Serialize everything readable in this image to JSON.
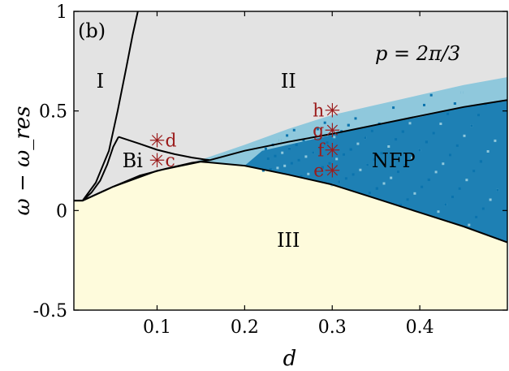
{
  "colors": {
    "region_I_II": "#e3e3e3",
    "region_III": "#fefbdc",
    "nfp_light": "#8fc8dc",
    "nfp_dark": "#0a73ad",
    "boundary": "#000000",
    "marker": "#9b1c1c"
  },
  "chart_data": {
    "type": "area",
    "panel_label": "(b)",
    "annotation": "p = 2π/3",
    "xlabel": "d",
    "ylabel": "ω − ω_res",
    "xlim": [
      0.005,
      0.5
    ],
    "ylim": [
      -0.5,
      1.0
    ],
    "x_ticks": [
      {
        "value": 0.1,
        "label": "0.1"
      },
      {
        "value": 0.2,
        "label": "0.2"
      },
      {
        "value": 0.3,
        "label": "0.3"
      },
      {
        "value": 0.4,
        "label": "0.4"
      }
    ],
    "y_ticks": [
      {
        "value": -0.5,
        "label": "-0.5"
      },
      {
        "value": 0,
        "label": "0"
      },
      {
        "value": 0.5,
        "label": "0.5"
      },
      {
        "value": 1.0,
        "label": "1"
      }
    ],
    "regions": [
      {
        "label": "I",
        "x": 0.035,
        "y": 0.65
      },
      {
        "label": "II",
        "x": 0.25,
        "y": 0.65
      },
      {
        "label": "Bi",
        "x": 0.072,
        "y": 0.25
      },
      {
        "label": "NFP",
        "x": 0.37,
        "y": 0.25
      },
      {
        "label": "III",
        "x": 0.25,
        "y": -0.15
      }
    ],
    "boundaries": {
      "upper_I_II": [
        [
          0.005,
          0.05
        ],
        [
          0.015,
          0.05
        ],
        [
          0.03,
          0.14
        ],
        [
          0.045,
          0.3
        ],
        [
          0.055,
          0.5
        ],
        [
          0.065,
          0.72
        ],
        [
          0.072,
          0.88
        ],
        [
          0.078,
          1.0
        ]
      ],
      "inner_I_Bi": [
        [
          0.015,
          0.05
        ],
        [
          0.025,
          0.09
        ],
        [
          0.035,
          0.15
        ],
        [
          0.043,
          0.23
        ],
        [
          0.05,
          0.32
        ],
        [
          0.056,
          0.37
        ]
      ],
      "upper_Bi": [
        [
          0.056,
          0.37
        ],
        [
          0.08,
          0.335
        ],
        [
          0.1,
          0.305
        ],
        [
          0.12,
          0.283
        ],
        [
          0.14,
          0.266
        ],
        [
          0.16,
          0.253
        ]
      ],
      "lower_Bi": [
        [
          0.015,
          0.05
        ],
        [
          0.05,
          0.12
        ],
        [
          0.08,
          0.175
        ],
        [
          0.11,
          0.21
        ],
        [
          0.14,
          0.24
        ],
        [
          0.16,
          0.253
        ]
      ],
      "separatrix_II_NFP": [
        [
          0.16,
          0.253
        ],
        [
          0.2,
          0.3
        ],
        [
          0.25,
          0.345
        ],
        [
          0.3,
          0.385
        ],
        [
          0.35,
          0.43
        ],
        [
          0.4,
          0.475
        ],
        [
          0.45,
          0.52
        ],
        [
          0.5,
          0.555
        ]
      ],
      "lower_III": [
        [
          0.005,
          0.05
        ],
        [
          0.015,
          0.05
        ],
        [
          0.05,
          0.12
        ],
        [
          0.1,
          0.2
        ],
        [
          0.15,
          0.245
        ],
        [
          0.2,
          0.225
        ],
        [
          0.25,
          0.18
        ],
        [
          0.3,
          0.13
        ],
        [
          0.35,
          0.06
        ],
        [
          0.4,
          -0.01
        ],
        [
          0.45,
          -0.08
        ],
        [
          0.5,
          -0.16
        ]
      ]
    },
    "nfp_region": {
      "upper_edge": [
        [
          0.14,
          0.24
        ],
        [
          0.2,
          0.33
        ],
        [
          0.25,
          0.41
        ],
        [
          0.3,
          0.48
        ],
        [
          0.35,
          0.53
        ],
        [
          0.4,
          0.58
        ],
        [
          0.45,
          0.63
        ],
        [
          0.5,
          0.67
        ]
      ],
      "dark_upper_edge": [
        [
          0.22,
          0.3
        ],
        [
          0.3,
          0.38
        ],
        [
          0.35,
          0.43
        ],
        [
          0.4,
          0.47
        ],
        [
          0.45,
          0.52
        ],
        [
          0.5,
          0.55
        ]
      ]
    },
    "markers": [
      {
        "label": "d",
        "x": 0.1,
        "y": 0.35
      },
      {
        "label": "c",
        "x": 0.1,
        "y": 0.25
      },
      {
        "label": "h",
        "x": 0.3,
        "y": 0.5
      },
      {
        "label": "g",
        "x": 0.3,
        "y": 0.4
      },
      {
        "label": "f",
        "x": 0.3,
        "y": 0.3
      },
      {
        "label": "e",
        "x": 0.3,
        "y": 0.2
      }
    ]
  }
}
